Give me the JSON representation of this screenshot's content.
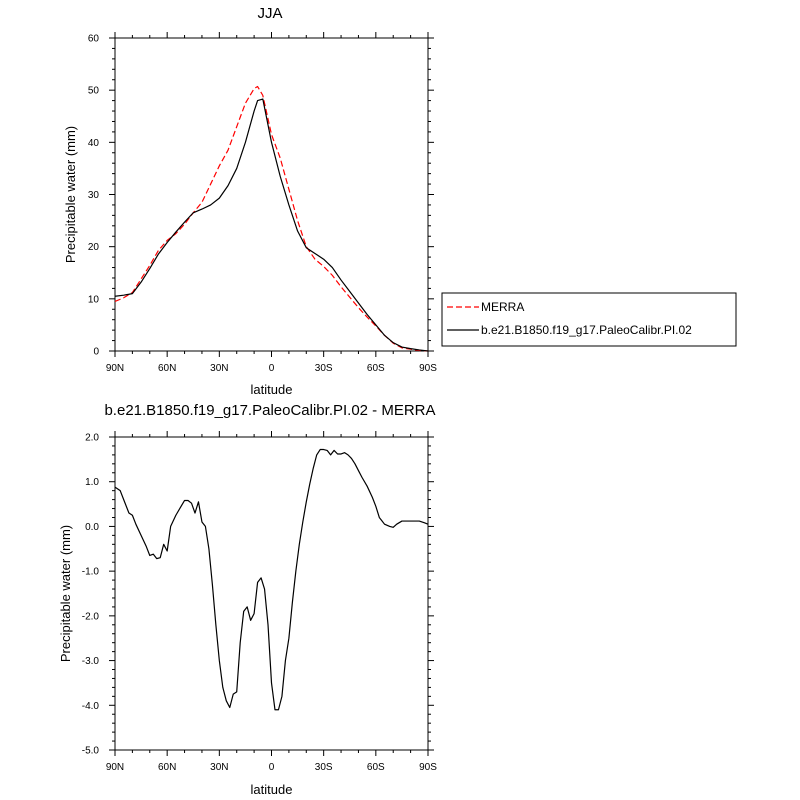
{
  "chart_data": [
    {
      "type": "line",
      "title": "JJA",
      "xlabel": "latitude",
      "ylabel": "Precipitable water (mm)",
      "xlim": [
        90,
        -90
      ],
      "ylim": [
        0,
        60
      ],
      "x_ticks": [
        {
          "value": 90,
          "label": "90N"
        },
        {
          "value": 60,
          "label": "60N"
        },
        {
          "value": 30,
          "label": "30N"
        },
        {
          "value": 0,
          "label": "0"
        },
        {
          "value": -30,
          "label": "30S"
        },
        {
          "value": -60,
          "label": "60S"
        },
        {
          "value": -90,
          "label": "90S"
        }
      ],
      "y_ticks": [
        {
          "value": 0,
          "label": "0"
        },
        {
          "value": 10,
          "label": "10"
        },
        {
          "value": 20,
          "label": "20"
        },
        {
          "value": 30,
          "label": "30"
        },
        {
          "value": 40,
          "label": "40"
        },
        {
          "value": 50,
          "label": "50"
        },
        {
          "value": 60,
          "label": "60"
        }
      ],
      "legend": "right",
      "series": [
        {
          "name": "MERRA",
          "color": "#ff0000",
          "dash": "dashed",
          "x": [
            90,
            85,
            80,
            75,
            70,
            65,
            60,
            55,
            50,
            45,
            40,
            35,
            30,
            25,
            20,
            15,
            10,
            8,
            5,
            0,
            -5,
            -10,
            -15,
            -20,
            -25,
            -30,
            -35,
            -40,
            -45,
            -50,
            -55,
            -60,
            -65,
            -70,
            -75,
            -80,
            -85,
            -90
          ],
          "y": [
            9.5,
            10.2,
            11.2,
            13.8,
            16.4,
            19.3,
            21.2,
            22.5,
            24.3,
            26.5,
            28.5,
            32,
            35.5,
            38.5,
            43,
            47.5,
            50.3,
            50.7,
            49,
            41.5,
            37,
            31,
            25,
            20,
            17.6,
            16.2,
            14.5,
            12.3,
            10.3,
            8.3,
            6.5,
            4.8,
            3,
            1.5,
            0.6,
            0.35,
            0.1,
            0
          ]
        },
        {
          "name": "b.e21.B1850.f19_g17.PaleoCalibr.PI.02",
          "color": "#000000",
          "dash": "solid",
          "x": [
            90,
            85,
            80,
            75,
            70,
            65,
            60,
            55,
            50,
            45,
            40,
            35,
            30,
            25,
            20,
            15,
            10,
            8,
            5,
            0,
            -5,
            -10,
            -15,
            -20,
            -25,
            -30,
            -35,
            -40,
            -45,
            -50,
            -55,
            -60,
            -65,
            -70,
            -75,
            -80,
            -85,
            -90
          ],
          "y": [
            10.5,
            10.7,
            11,
            13.2,
            15.8,
            18.6,
            20.8,
            22.8,
            24.7,
            26.5,
            27.2,
            28,
            29.3,
            31.7,
            35,
            40,
            46,
            48,
            48.3,
            40,
            33.5,
            28,
            23,
            19.8,
            18.7,
            17.6,
            16,
            13.6,
            11.4,
            9.2,
            7,
            5,
            3,
            1.6,
            0.75,
            0.45,
            0.2,
            0
          ]
        }
      ]
    },
    {
      "type": "line",
      "title": "b.e21.B1850.f19_g17.PaleoCalibr.PI.02 - MERRA",
      "xlabel": "latitude",
      "ylabel": "Precipitable water (mm)",
      "xlim": [
        90,
        -90
      ],
      "ylim": [
        -5,
        2
      ],
      "x_ticks": [
        {
          "value": 90,
          "label": "90N"
        },
        {
          "value": 60,
          "label": "60N"
        },
        {
          "value": 30,
          "label": "30N"
        },
        {
          "value": 0,
          "label": "0"
        },
        {
          "value": -30,
          "label": "30S"
        },
        {
          "value": -60,
          "label": "60S"
        },
        {
          "value": -90,
          "label": "90S"
        }
      ],
      "y_ticks": [
        {
          "value": 2,
          "label": "2.0"
        },
        {
          "value": 1,
          "label": "1.0"
        },
        {
          "value": 0,
          "label": "0.0"
        },
        {
          "value": -1,
          "label": "-1.0"
        },
        {
          "value": -2,
          "label": "-2.0"
        },
        {
          "value": -3,
          "label": "-3.0"
        },
        {
          "value": -4,
          "label": "-4.0"
        },
        {
          "value": -5,
          "label": "-5.0"
        }
      ],
      "series": [
        {
          "color": "#000000",
          "dash": "solid",
          "x": [
            90,
            87,
            85,
            82,
            80,
            78,
            75,
            72,
            70,
            68,
            66,
            64,
            62,
            60,
            58,
            55,
            52,
            50,
            48,
            46,
            44,
            42,
            40,
            38,
            36,
            34,
            32,
            30,
            28,
            26,
            24,
            22,
            20,
            18,
            16,
            14,
            12,
            10,
            8,
            6,
            4,
            2,
            0,
            -2,
            -4,
            -6,
            -8,
            -10,
            -12,
            -14,
            -16,
            -18,
            -20,
            -22,
            -24,
            -26,
            -28,
            -30,
            -32,
            -34,
            -36,
            -38,
            -40,
            -42,
            -44,
            -46,
            -48,
            -50,
            -52,
            -55,
            -58,
            -60,
            -62,
            -65,
            -68,
            -70,
            -72,
            -75,
            -78,
            -80,
            -82,
            -85,
            -88,
            -90
          ],
          "y": [
            0.88,
            0.8,
            0.6,
            0.3,
            0.25,
            0.05,
            -0.2,
            -0.45,
            -0.65,
            -0.62,
            -0.72,
            -0.7,
            -0.4,
            -0.55,
            0.0,
            0.25,
            0.45,
            0.58,
            0.58,
            0.52,
            0.3,
            0.55,
            0.1,
            0.0,
            -0.5,
            -1.3,
            -2.2,
            -3.0,
            -3.6,
            -3.9,
            -4.05,
            -3.75,
            -3.7,
            -2.6,
            -1.9,
            -1.8,
            -2.1,
            -1.95,
            -1.25,
            -1.15,
            -1.4,
            -2.2,
            -3.5,
            -4.1,
            -4.1,
            -3.8,
            -3.0,
            -2.5,
            -1.7,
            -1.0,
            -0.4,
            0.1,
            0.55,
            0.95,
            1.3,
            1.6,
            1.72,
            1.72,
            1.7,
            1.6,
            1.7,
            1.62,
            1.62,
            1.65,
            1.6,
            1.52,
            1.4,
            1.25,
            1.1,
            0.9,
            0.65,
            0.45,
            0.2,
            0.05,
            0.0,
            -0.02,
            0.05,
            0.12,
            0.12,
            0.12,
            0.12,
            0.12,
            0.08,
            0.05
          ]
        }
      ]
    }
  ]
}
